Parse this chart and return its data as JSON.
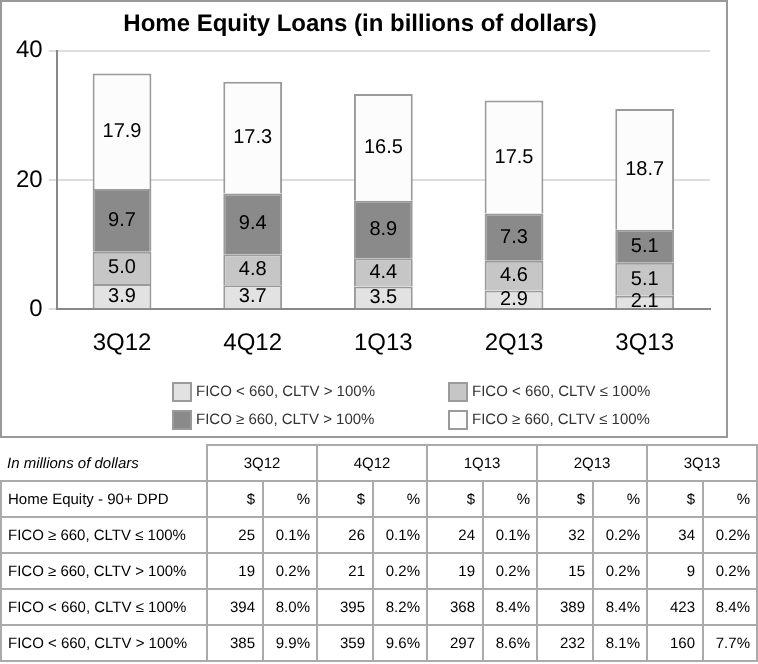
{
  "chart_data": [
    {
      "type": "bar",
      "title": "Home Equity Loans (in billions of dollars)",
      "categories": [
        "3Q12",
        "4Q12",
        "1Q13",
        "2Q13",
        "3Q13"
      ],
      "stacked": true,
      "ylim": [
        0,
        40
      ],
      "yticks": [
        0,
        20,
        40
      ],
      "grid": "y",
      "legend": "bottom",
      "series": [
        {
          "name": "FICO < 660, CLTV > 100%",
          "color": "#e2e2e2",
          "values": [
            3.9,
            3.7,
            3.5,
            2.9,
            2.1
          ],
          "value_labels": [
            "3.9",
            "3.7",
            "3.5",
            "2.9",
            "2.1"
          ]
        },
        {
          "name": "FICO < 660, CLTV ≤ 100%",
          "color": "#c6c6c6",
          "values": [
            5.0,
            4.8,
            4.4,
            4.6,
            5.1
          ],
          "value_labels": [
            "5.0",
            "4.8",
            "4.4",
            "4.6",
            "5.1"
          ]
        },
        {
          "name": "FICO ≥ 660, CLTV > 100%",
          "color": "#8a8a8a",
          "values": [
            9.7,
            9.4,
            8.9,
            7.3,
            5.1
          ],
          "value_labels": [
            "9.7",
            "9.4",
            "8.9",
            "7.3",
            "5.1"
          ]
        },
        {
          "name": "FICO ≥ 660, CLTV ≤ 100%",
          "color": "#fcfcfc",
          "values": [
            17.9,
            17.3,
            16.5,
            17.5,
            18.7
          ],
          "value_labels": [
            "17.9",
            "17.3",
            "16.5",
            "17.5",
            "18.7"
          ]
        }
      ]
    },
    {
      "type": "other",
      "annotations": [
        "In millions of dollars",
        "3Q12",
        "4Q12",
        "1Q13",
        "2Q13",
        "3Q13",
        "Home Equity - 90+ DPD",
        "$",
        "%",
        "$",
        "%",
        "$",
        "%",
        "$",
        "%",
        "$",
        "%",
        "FICO ≥ 660, CLTV ≤ 100%",
        "25",
        "0.1%",
        "26",
        "0.1%",
        "24",
        "0.1%",
        "32",
        "0.2%",
        "34",
        "0.2%",
        "FICO ≥ 660, CLTV > 100%",
        "19",
        "0.2%",
        "21",
        "0.2%",
        "19",
        "0.2%",
        "15",
        "0.2%",
        "9",
        "0.2%",
        "FICO < 660, CLTV ≤ 100%",
        "394",
        "8.0%",
        "395",
        "8.2%",
        "368",
        "8.4%",
        "389",
        "8.4%",
        "423",
        "8.4%",
        "FICO < 660, CLTV > 100%",
        "385",
        "9.9%",
        "359",
        "9.6%",
        "297",
        "8.6%",
        "232",
        "8.1%",
        "160",
        "7.7%"
      ]
    }
  ]
}
